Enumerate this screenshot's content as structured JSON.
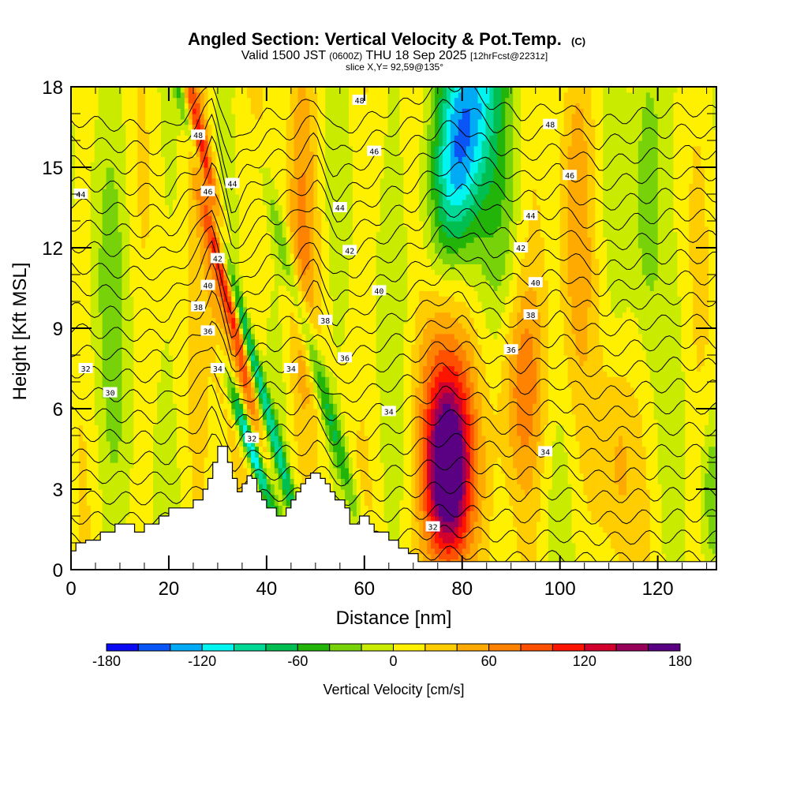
{
  "chart_data": {
    "type": "heatmap",
    "title": "Angled Section: Vertical Velocity & Pot.Temp.",
    "title_mark": "(C)",
    "subtitle_parts": {
      "valid": "Valid 1500 JST",
      "utc": "(0600Z)",
      "date": "THU 18 Sep 2025",
      "forecast": "[12hrFcst@2231z]"
    },
    "slice_label": "slice X,Y= 92,59@135°",
    "xlabel": "Distance [nm]",
    "ylabel": "Height [Kft MSL]",
    "xlim": [
      0,
      132
    ],
    "ylim": [
      0,
      18
    ],
    "x_ticks": [
      0,
      20,
      40,
      60,
      80,
      100,
      120
    ],
    "x_tick_labels": [
      "0",
      "20",
      "40",
      "60",
      "80",
      "100",
      "120"
    ],
    "x_minor_step": 5,
    "y_ticks": [
      0,
      3,
      6,
      9,
      12,
      15,
      18
    ],
    "y_tick_labels": [
      "0",
      "3",
      "6",
      "9",
      "12",
      "15",
      "18"
    ],
    "y_minor_step": 1,
    "colorbar": {
      "title": "Vertical Velocity [cm/s]",
      "bounds": [
        -180,
        -160,
        -140,
        -120,
        -100,
        -80,
        -60,
        -40,
        -20,
        0,
        20,
        40,
        60,
        80,
        100,
        120,
        140,
        160,
        180
      ],
      "colors": [
        "#0a0af5",
        "#0a55f5",
        "#00aaf5",
        "#00f5f0",
        "#00d896",
        "#00be50",
        "#23b40a",
        "#78d20a",
        "#c8eb00",
        "#fff000",
        "#ffcd00",
        "#ffaa00",
        "#ff8200",
        "#ff5000",
        "#ff1400",
        "#d2002d",
        "#96005a",
        "#5a0082"
      ],
      "tick_values": [
        -180,
        -120,
        -60,
        0,
        60,
        120,
        180
      ],
      "tick_labels": [
        "-180",
        "-120",
        "-60",
        "0",
        "60",
        "120",
        "180"
      ],
      "placement": "bottom"
    },
    "terrain_kft": {
      "x": [
        0,
        1,
        3,
        6,
        9,
        13,
        15,
        18,
        20,
        25,
        26,
        27,
        28,
        29,
        30,
        31,
        32,
        33,
        34,
        35,
        36,
        37,
        38,
        39,
        40,
        41,
        42,
        43,
        44,
        45,
        46,
        47,
        48,
        49,
        50,
        51,
        52,
        53,
        54,
        55,
        56,
        57,
        58,
        59,
        60,
        61,
        62,
        63,
        64,
        65,
        66,
        67,
        68,
        69,
        70,
        71,
        72,
        132
      ],
      "h": [
        0.7,
        1.0,
        1.1,
        1.4,
        1.7,
        1.4,
        1.7,
        2.0,
        2.3,
        2.6,
        2.6,
        3.0,
        3.4,
        4.0,
        4.6,
        4.6,
        4.0,
        3.4,
        2.9,
        3.2,
        3.5,
        3.4,
        2.9,
        2.6,
        2.3,
        2.3,
        2.0,
        2.0,
        2.3,
        2.6,
        2.9,
        3.2,
        3.4,
        3.6,
        3.6,
        3.4,
        3.2,
        2.9,
        2.6,
        2.6,
        2.3,
        1.7,
        1.7,
        2.0,
        2.0,
        1.7,
        1.4,
        1.4,
        1.4,
        1.1,
        1.1,
        0.8,
        0.8,
        0.6,
        0.6,
        0.3,
        0.3,
        0.3
      ]
    },
    "vertical_velocity_features": [
      {
        "name": "lee-wave-updraft-31nm",
        "x": 31,
        "z": 11.5,
        "sx": 1.2,
        "sz": 4.5,
        "tilt": -0.18,
        "value": 125
      },
      {
        "name": "lee-wave-downdraft-33nm",
        "x": 34,
        "z": 10,
        "sx": 0.9,
        "sz": 7.5,
        "tilt": -0.25,
        "value": -110
      },
      {
        "name": "downdraft-37nm-low",
        "x": 37,
        "z": 4.5,
        "sx": 1.0,
        "sz": 1.8,
        "tilt": -0.3,
        "value": -150
      },
      {
        "name": "updraft-26nm",
        "x": 28,
        "z": 13,
        "sx": 1.8,
        "sz": 6.0,
        "tilt": -0.1,
        "value": 55
      },
      {
        "name": "downdraft-51nm",
        "x": 51,
        "z": 7,
        "sx": 1.2,
        "sz": 5.0,
        "tilt": -0.25,
        "value": -70
      },
      {
        "name": "updraft-47nm",
        "x": 47,
        "z": 13,
        "sx": 2.2,
        "sz": 6.0,
        "tilt": 0.0,
        "value": 45
      },
      {
        "name": "downdraft-upper-83nm",
        "x": 81,
        "z": 16.5,
        "sx": 4.0,
        "sz": 3.5,
        "tilt": 0.15,
        "value": -110
      },
      {
        "name": "downdraft-upper-80nm-broad",
        "x": 81,
        "z": 14,
        "sx": 7.0,
        "sz": 5.0,
        "tilt": 0.0,
        "value": -50
      },
      {
        "name": "updraft-core-77nm",
        "x": 77,
        "z": 3.5,
        "sx": 3.0,
        "sz": 2.2,
        "tilt": 0.0,
        "value": 165
      },
      {
        "name": "updraft-column-77nm",
        "x": 77,
        "z": 6.5,
        "sx": 4.0,
        "sz": 4.5,
        "tilt": 0.0,
        "value": 95
      },
      {
        "name": "updraft-92nm",
        "x": 92,
        "z": 7.0,
        "sx": 3.5,
        "sz": 3.0,
        "tilt": 0.0,
        "value": 75
      },
      {
        "name": "updraft-103nm-upper",
        "x": 103,
        "z": 14,
        "sx": 2.5,
        "sz": 5.0,
        "tilt": 0.0,
        "value": 45
      },
      {
        "name": "updraft-112nm-low",
        "x": 112,
        "z": 4,
        "sx": 2.5,
        "sz": 3.0,
        "tilt": 0.0,
        "value": 40
      },
      {
        "name": "downdraft-118nm-upper",
        "x": 118,
        "z": 15,
        "sx": 2.0,
        "sz": 4.0,
        "tilt": 0.0,
        "value": -55
      },
      {
        "name": "downdraft-8nm",
        "x": 8,
        "z": 10,
        "sx": 3.5,
        "sz": 7.0,
        "tilt": 0.0,
        "value": -20
      },
      {
        "name": "downdraft-130nm-low",
        "x": 131,
        "z": 3,
        "sx": 1.5,
        "sz": 2.0,
        "tilt": 0.0,
        "value": -40
      }
    ],
    "theta_contour_labels": [
      {
        "x": 2,
        "z": 14.0,
        "text": "44"
      },
      {
        "x": 26,
        "z": 16.2,
        "text": "48"
      },
      {
        "x": 28,
        "z": 14.1,
        "text": "46"
      },
      {
        "x": 33,
        "z": 14.4,
        "text": "44"
      },
      {
        "x": 30,
        "z": 11.6,
        "text": "42"
      },
      {
        "x": 28,
        "z": 10.6,
        "text": "40"
      },
      {
        "x": 26,
        "z": 9.8,
        "text": "38"
      },
      {
        "x": 28,
        "z": 8.9,
        "text": "36"
      },
      {
        "x": 30,
        "z": 7.5,
        "text": "34"
      },
      {
        "x": 37,
        "z": 4.9,
        "text": "32"
      },
      {
        "x": 3,
        "z": 7.5,
        "text": "32"
      },
      {
        "x": 8,
        "z": 6.6,
        "text": "30"
      },
      {
        "x": 59,
        "z": 17.5,
        "text": "48"
      },
      {
        "x": 62,
        "z": 15.6,
        "text": "46"
      },
      {
        "x": 55,
        "z": 13.5,
        "text": "44"
      },
      {
        "x": 57,
        "z": 11.9,
        "text": "42"
      },
      {
        "x": 63,
        "z": 10.4,
        "text": "40"
      },
      {
        "x": 52,
        "z": 9.3,
        "text": "38"
      },
      {
        "x": 56,
        "z": 7.9,
        "text": "36"
      },
      {
        "x": 45,
        "z": 7.5,
        "text": "34"
      },
      {
        "x": 65,
        "z": 5.9,
        "text": "34"
      },
      {
        "x": 74,
        "z": 1.6,
        "text": "32"
      },
      {
        "x": 98,
        "z": 16.6,
        "text": "48"
      },
      {
        "x": 102,
        "z": 14.7,
        "text": "46"
      },
      {
        "x": 94,
        "z": 13.2,
        "text": "44"
      },
      {
        "x": 92,
        "z": 12.0,
        "text": "42"
      },
      {
        "x": 95,
        "z": 10.7,
        "text": "40"
      },
      {
        "x": 94,
        "z": 9.5,
        "text": "38"
      },
      {
        "x": 90,
        "z": 8.2,
        "text": "36"
      },
      {
        "x": 97,
        "z": 4.4,
        "text": "34"
      }
    ],
    "theta_levels_K": [
      28,
      29,
      30,
      31,
      32,
      33,
      34,
      35,
      36,
      37,
      38,
      39,
      40,
      41,
      42,
      43,
      44,
      45,
      46,
      47,
      48,
      49,
      50
    ],
    "theta_base_heights_kft": {
      "x": [
        0,
        10,
        20,
        26,
        29,
        31,
        33,
        36,
        40,
        46,
        50,
        54,
        58,
        64,
        70,
        76,
        80,
        86,
        92,
        100,
        108,
        116,
        124,
        132
      ],
      "offset_kft": [
        0.0,
        -0.2,
        -0.3,
        0.6,
        1.6,
        0.3,
        -1.0,
        -0.3,
        0.2,
        0.3,
        0.9,
        -0.5,
        -0.2,
        0.3,
        0.7,
        1.3,
        1.3,
        0.6,
        0.2,
        0.5,
        -0.1,
        0.2,
        0.4,
        0.3
      ]
    },
    "grid": false,
    "legend": "colorbar-bottom"
  }
}
